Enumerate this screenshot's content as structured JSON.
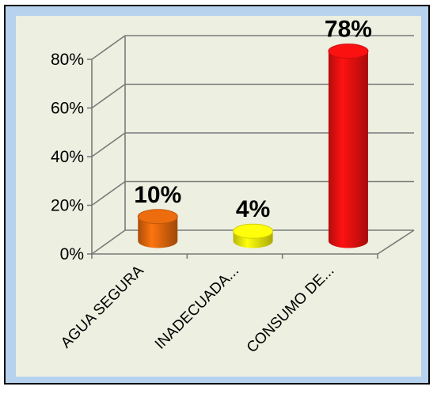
{
  "chart_data": {
    "type": "bar",
    "style": "3d-cylinder",
    "categories": [
      "AGUA SEGURA",
      "INADECUADA...",
      "CONSUMO DE..."
    ],
    "values": [
      10,
      4,
      78
    ],
    "data_labels": [
      "10%",
      "4%",
      "78%"
    ],
    "bar_colors": [
      "#e2680d",
      "#f5f20a",
      "#f01010"
    ],
    "ylim": [
      0,
      80
    ],
    "yticks": [
      0,
      20,
      40,
      60,
      80
    ],
    "ytick_labels": [
      "0%",
      "20%",
      "40%",
      "60%",
      "80%"
    ],
    "grid": true,
    "legend": "none"
  },
  "colors": {
    "outer_background": "#b7d2ee",
    "plot_background": "#edefe0",
    "gridline": "#7a7a7a"
  }
}
